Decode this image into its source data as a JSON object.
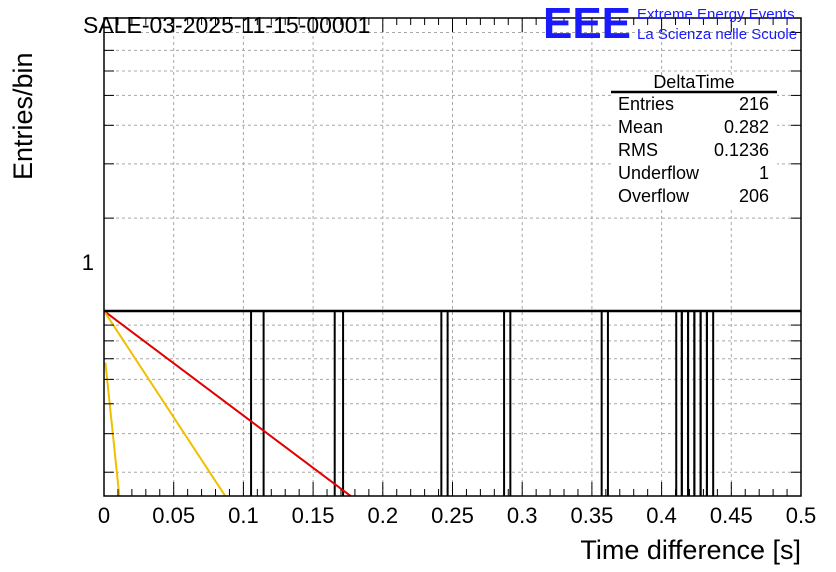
{
  "header": {
    "run_title": "SALE-03-2025-11-15-00001",
    "logo_text": "EEE",
    "logo_line1": "Extreme Energy Events",
    "logo_line2": "La Scienza nelle Scuole",
    "brand_color": "#1a1aff"
  },
  "stats_box": {
    "title": "DeltaTime",
    "rows": [
      {
        "label": "Entries",
        "value": "216"
      },
      {
        "label": "Mean",
        "value": "0.282"
      },
      {
        "label": "RMS",
        "value": "0.1236"
      },
      {
        "label": "Underflow",
        "value": "1"
      },
      {
        "label": "Overflow",
        "value": "206"
      }
    ]
  },
  "chart_data": {
    "type": "bar",
    "title": "SALE-03-2025-11-15-00001",
    "xlabel": "Time difference [s]",
    "ylabel": "Entries/bin",
    "xlim": [
      0,
      0.5
    ],
    "ylog": true,
    "ylim_log10": [
      -0.6,
      0.95
    ],
    "x_ticks": [
      "0",
      "0.05",
      "0.1",
      "0.15",
      "0.2",
      "0.25",
      "0.3",
      "0.35",
      "0.4",
      "0.45",
      "0.5"
    ],
    "y_ticks": [
      "1"
    ],
    "grid": true,
    "histogram_baseline": 1,
    "bins": [
      {
        "x0": 0.1055,
        "x1": 0.1145,
        "value": 1
      },
      {
        "x0": 0.1655,
        "x1": 0.1715,
        "value": 1
      },
      {
        "x0": 0.242,
        "x1": 0.2465,
        "value": 1
      },
      {
        "x0": 0.287,
        "x1": 0.2915,
        "value": 1
      },
      {
        "x0": 0.357,
        "x1": 0.3615,
        "value": 1
      },
      {
        "x0": 0.4105,
        "x1": 0.4145,
        "value": 1
      },
      {
        "x0": 0.4145,
        "x1": 0.419,
        "value": 1
      },
      {
        "x0": 0.419,
        "x1": 0.4235,
        "value": 1
      },
      {
        "x0": 0.4235,
        "x1": 0.428,
        "value": 1
      },
      {
        "x0": 0.428,
        "x1": 0.4325,
        "value": 1
      },
      {
        "x0": 0.4325,
        "x1": 0.437,
        "value": 1
      }
    ],
    "fit_lines": [
      {
        "name": "fit-red",
        "color": "#e00000",
        "points": [
          [
            0,
            1
          ],
          [
            0.177,
            0.251
          ]
        ]
      },
      {
        "name": "fit-yellow",
        "color": "#f0c000",
        "points": [
          [
            0,
            1
          ],
          [
            0.087,
            0.251
          ]
        ]
      },
      {
        "name": "fit-yellow-steep",
        "color": "#f0c000",
        "points": [
          [
            0.001,
            0.68
          ],
          [
            0.011,
            0.251
          ]
        ]
      }
    ]
  }
}
